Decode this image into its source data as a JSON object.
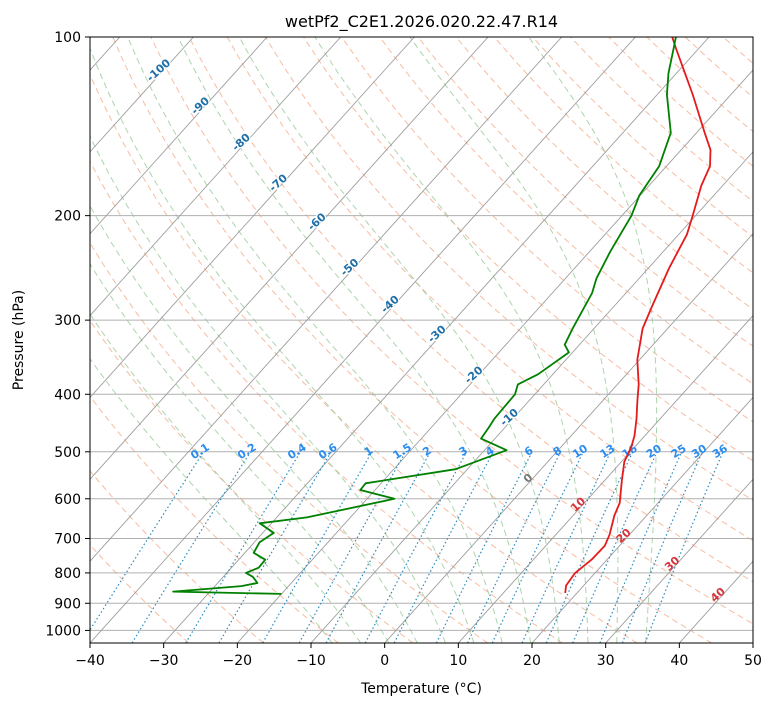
{
  "colors": {
    "temperature": "#e41a1c",
    "dewpoint": "#008000",
    "isotherm": "#9e9e9e",
    "dry_adiabat": "#f4a582",
    "moist_adiabat": "#98c998",
    "mixing_ratio": "#2b8cbe",
    "isotherm_label": "#1f6fa8",
    "mixing_label": "#2b8cf0",
    "positive_label": "#d6333a",
    "zero_label": "#777777",
    "grid": "#b0b0b0",
    "tan": "#d9c6a5"
  },
  "chart_data": {
    "type": "line",
    "title": "wetPf2_C2E1.2026.020.22.47.R14",
    "xlabel": "Temperature (°C)",
    "ylabel": "Pressure (hPa)",
    "xlim": [
      -40,
      50
    ],
    "ylim": [
      1050,
      100
    ],
    "y_scale": "log",
    "grid": true,
    "x_ticks": [
      -40,
      -30,
      -20,
      -10,
      0,
      10,
      20,
      30,
      40,
      50
    ],
    "x_tick_labels": [
      "−40",
      "−30",
      "−20",
      "−10",
      "0",
      "10",
      "20",
      "30",
      "40",
      "50"
    ],
    "y_ticks": [
      100,
      200,
      300,
      400,
      500,
      600,
      700,
      800,
      900,
      1000
    ],
    "y_tick_labels": [
      "100",
      "200",
      "300",
      "400",
      "500",
      "600",
      "700",
      "800",
      "900",
      "1000"
    ],
    "series": [
      {
        "role": "temperature",
        "color": "#e41a1c",
        "points": [
          [
            18.4,
            865
          ],
          [
            17.6,
            840
          ],
          [
            17.3,
            800
          ],
          [
            17.9,
            760
          ],
          [
            18.0,
            720
          ],
          [
            17.3,
            690
          ],
          [
            15.6,
            640
          ],
          [
            14.8,
            610
          ],
          [
            12.4,
            560
          ],
          [
            10.4,
            520
          ],
          [
            9.5,
            490
          ],
          [
            8.6,
            470
          ],
          [
            6.8,
            440
          ],
          [
            4.7,
            410
          ],
          [
            2.9,
            385
          ],
          [
            -0.3,
            350
          ],
          [
            -3.4,
            310
          ],
          [
            -4.8,
            285
          ],
          [
            -7.2,
            245
          ],
          [
            -8.9,
            215
          ],
          [
            -10.4,
            200
          ],
          [
            -12.9,
            178
          ],
          [
            -14.1,
            165
          ],
          [
            -16.0,
            155
          ],
          [
            -18.9,
            145
          ],
          [
            -25.2,
            125
          ],
          [
            -32.9,
            105
          ],
          [
            -35.0,
            100
          ]
        ]
      },
      {
        "role": "dewpoint",
        "color": "#008000",
        "points": [
          [
            -20,
            868
          ],
          [
            -35,
            860
          ],
          [
            -26.4,
            842
          ],
          [
            -24.6,
            832
          ],
          [
            -26.0,
            812
          ],
          [
            -27.4,
            800
          ],
          [
            -26.3,
            784
          ],
          [
            -26.4,
            760
          ],
          [
            -28.8,
            740
          ],
          [
            -29.3,
            710
          ],
          [
            -28.5,
            685
          ],
          [
            -31.6,
            660
          ],
          [
            -25.9,
            645
          ],
          [
            -16.3,
            600
          ],
          [
            -22.0,
            580
          ],
          [
            -22.1,
            565
          ],
          [
            -11.6,
            535
          ],
          [
            -7.0,
            497
          ],
          [
            -11.9,
            475
          ],
          [
            -12.2,
            455
          ],
          [
            -12.5,
            440
          ],
          [
            -12.7,
            400
          ],
          [
            -13.5,
            385
          ],
          [
            -12.0,
            370
          ],
          [
            -10.5,
            340
          ],
          [
            -12.0,
            330
          ],
          [
            -12.9,
            310
          ],
          [
            -14.6,
            270
          ],
          [
            -15.8,
            255
          ],
          [
            -17.2,
            230
          ],
          [
            -18.7,
            200
          ],
          [
            -20.1,
            185
          ],
          [
            -21.0,
            165
          ],
          [
            -23.5,
            145
          ],
          [
            -28.7,
            125
          ],
          [
            -31.1,
            115
          ],
          [
            -33.3,
            105
          ],
          [
            -34.5,
            100
          ]
        ]
      }
    ],
    "isotherm_labels": [
      "-100",
      "-90",
      "-80",
      "-70",
      "-60",
      "-50",
      "-40",
      "-30",
      "-20",
      "-10"
    ],
    "mixing_ratio_labels": [
      "0.1",
      "0.2",
      "0.4",
      "0.6",
      "1",
      "1.5",
      "2",
      "3",
      "4",
      "6",
      "8",
      "10",
      "13",
      "16",
      "20",
      "25",
      "30",
      "36"
    ],
    "positive_isotherm_labels": [
      "0",
      "10",
      "20",
      "30",
      "40"
    ]
  }
}
